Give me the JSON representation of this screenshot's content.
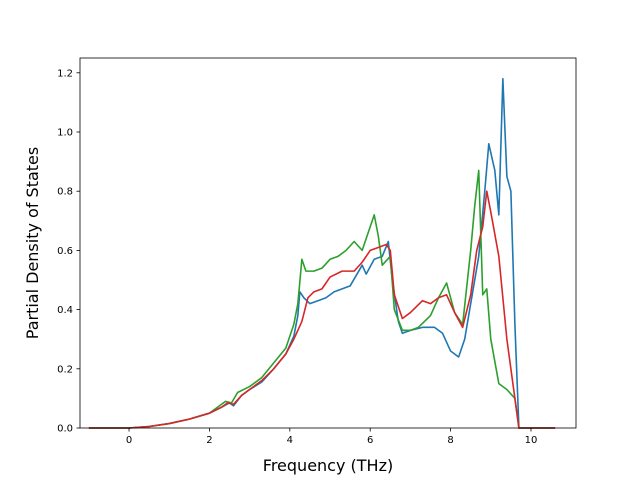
{
  "chart_data": {
    "type": "line",
    "title": "",
    "xlabel": "Frequency (THz)",
    "ylabel": "Partial Density of States",
    "xlim": [
      -1.22,
      11.12
    ],
    "ylim": [
      0.0,
      1.25
    ],
    "xticks": [
      0,
      2,
      4,
      6,
      8,
      10
    ],
    "yticks": [
      0.0,
      0.2,
      0.4,
      0.6,
      0.8,
      1.0,
      1.2
    ],
    "xtick_labels": [
      "0",
      "2",
      "4",
      "6",
      "8",
      "10"
    ],
    "ytick_labels": [
      "0.0",
      "0.2",
      "0.4",
      "0.6",
      "0.8",
      "1.0",
      "1.2"
    ],
    "grid": false,
    "legend": "none",
    "series": [
      {
        "color": "#1f77b4",
        "points": [
          [
            -1.0,
            0.0
          ],
          [
            0.0,
            0.0
          ],
          [
            0.5,
            0.005
          ],
          [
            1.0,
            0.015
          ],
          [
            1.5,
            0.03
          ],
          [
            2.0,
            0.05
          ],
          [
            2.3,
            0.07
          ],
          [
            2.5,
            0.085
          ],
          [
            2.6,
            0.075
          ],
          [
            2.8,
            0.11
          ],
          [
            3.0,
            0.13
          ],
          [
            3.3,
            0.155
          ],
          [
            3.6,
            0.2
          ],
          [
            3.9,
            0.25
          ],
          [
            4.1,
            0.31
          ],
          [
            4.2,
            0.38
          ],
          [
            4.25,
            0.46
          ],
          [
            4.35,
            0.44
          ],
          [
            4.5,
            0.42
          ],
          [
            4.7,
            0.43
          ],
          [
            4.9,
            0.44
          ],
          [
            5.1,
            0.46
          ],
          [
            5.3,
            0.47
          ],
          [
            5.5,
            0.48
          ],
          [
            5.8,
            0.55
          ],
          [
            5.9,
            0.52
          ],
          [
            6.1,
            0.57
          ],
          [
            6.3,
            0.58
          ],
          [
            6.45,
            0.63
          ],
          [
            6.55,
            0.5
          ],
          [
            6.7,
            0.36
          ],
          [
            6.8,
            0.32
          ],
          [
            7.0,
            0.33
          ],
          [
            7.3,
            0.34
          ],
          [
            7.6,
            0.34
          ],
          [
            7.8,
            0.32
          ],
          [
            8.0,
            0.26
          ],
          [
            8.2,
            0.24
          ],
          [
            8.35,
            0.3
          ],
          [
            8.5,
            0.42
          ],
          [
            8.7,
            0.58
          ],
          [
            8.85,
            0.8
          ],
          [
            8.95,
            0.96
          ],
          [
            9.1,
            0.87
          ],
          [
            9.2,
            0.72
          ],
          [
            9.3,
            1.18
          ],
          [
            9.4,
            0.85
          ],
          [
            9.5,
            0.8
          ],
          [
            9.6,
            0.35
          ],
          [
            9.7,
            0.0
          ],
          [
            10.6,
            0.0
          ]
        ]
      },
      {
        "color": "#2ca02c",
        "points": [
          [
            -1.0,
            0.0
          ],
          [
            0.0,
            0.0
          ],
          [
            0.5,
            0.005
          ],
          [
            1.0,
            0.015
          ],
          [
            1.5,
            0.03
          ],
          [
            2.0,
            0.05
          ],
          [
            2.2,
            0.07
          ],
          [
            2.4,
            0.09
          ],
          [
            2.55,
            0.085
          ],
          [
            2.7,
            0.12
          ],
          [
            3.0,
            0.14
          ],
          [
            3.3,
            0.17
          ],
          [
            3.6,
            0.22
          ],
          [
            3.9,
            0.27
          ],
          [
            4.1,
            0.35
          ],
          [
            4.2,
            0.42
          ],
          [
            4.3,
            0.57
          ],
          [
            4.4,
            0.53
          ],
          [
            4.6,
            0.53
          ],
          [
            4.8,
            0.54
          ],
          [
            5.0,
            0.57
          ],
          [
            5.2,
            0.58
          ],
          [
            5.4,
            0.6
          ],
          [
            5.6,
            0.63
          ],
          [
            5.8,
            0.6
          ],
          [
            6.0,
            0.68
          ],
          [
            6.1,
            0.72
          ],
          [
            6.2,
            0.65
          ],
          [
            6.3,
            0.55
          ],
          [
            6.5,
            0.58
          ],
          [
            6.6,
            0.4
          ],
          [
            6.8,
            0.33
          ],
          [
            7.0,
            0.33
          ],
          [
            7.2,
            0.34
          ],
          [
            7.5,
            0.38
          ],
          [
            7.7,
            0.44
          ],
          [
            7.9,
            0.49
          ],
          [
            8.1,
            0.39
          ],
          [
            8.3,
            0.35
          ],
          [
            8.5,
            0.6
          ],
          [
            8.6,
            0.75
          ],
          [
            8.7,
            0.87
          ],
          [
            8.8,
            0.45
          ],
          [
            8.9,
            0.47
          ],
          [
            9.0,
            0.3
          ],
          [
            9.2,
            0.15
          ],
          [
            9.4,
            0.13
          ],
          [
            9.6,
            0.1
          ],
          [
            9.7,
            0.0
          ],
          [
            10.6,
            0.0
          ]
        ]
      },
      {
        "color": "#d62728",
        "points": [
          [
            -1.0,
            0.0
          ],
          [
            0.0,
            0.0
          ],
          [
            0.5,
            0.005
          ],
          [
            1.0,
            0.015
          ],
          [
            1.5,
            0.03
          ],
          [
            2.0,
            0.05
          ],
          [
            2.3,
            0.07
          ],
          [
            2.45,
            0.085
          ],
          [
            2.6,
            0.08
          ],
          [
            2.8,
            0.11
          ],
          [
            3.0,
            0.13
          ],
          [
            3.3,
            0.16
          ],
          [
            3.6,
            0.2
          ],
          [
            3.9,
            0.25
          ],
          [
            4.1,
            0.3
          ],
          [
            4.3,
            0.36
          ],
          [
            4.45,
            0.44
          ],
          [
            4.6,
            0.46
          ],
          [
            4.8,
            0.47
          ],
          [
            5.0,
            0.51
          ],
          [
            5.3,
            0.53
          ],
          [
            5.6,
            0.53
          ],
          [
            5.8,
            0.56
          ],
          [
            6.0,
            0.6
          ],
          [
            6.2,
            0.61
          ],
          [
            6.4,
            0.62
          ],
          [
            6.5,
            0.6
          ],
          [
            6.6,
            0.45
          ],
          [
            6.8,
            0.37
          ],
          [
            7.0,
            0.39
          ],
          [
            7.3,
            0.43
          ],
          [
            7.5,
            0.42
          ],
          [
            7.7,
            0.44
          ],
          [
            7.9,
            0.45
          ],
          [
            8.1,
            0.39
          ],
          [
            8.3,
            0.34
          ],
          [
            8.5,
            0.45
          ],
          [
            8.65,
            0.6
          ],
          [
            8.8,
            0.68
          ],
          [
            8.9,
            0.8
          ],
          [
            9.0,
            0.73
          ],
          [
            9.2,
            0.58
          ],
          [
            9.4,
            0.3
          ],
          [
            9.55,
            0.15
          ],
          [
            9.7,
            0.0
          ],
          [
            10.6,
            0.0
          ]
        ]
      }
    ]
  }
}
